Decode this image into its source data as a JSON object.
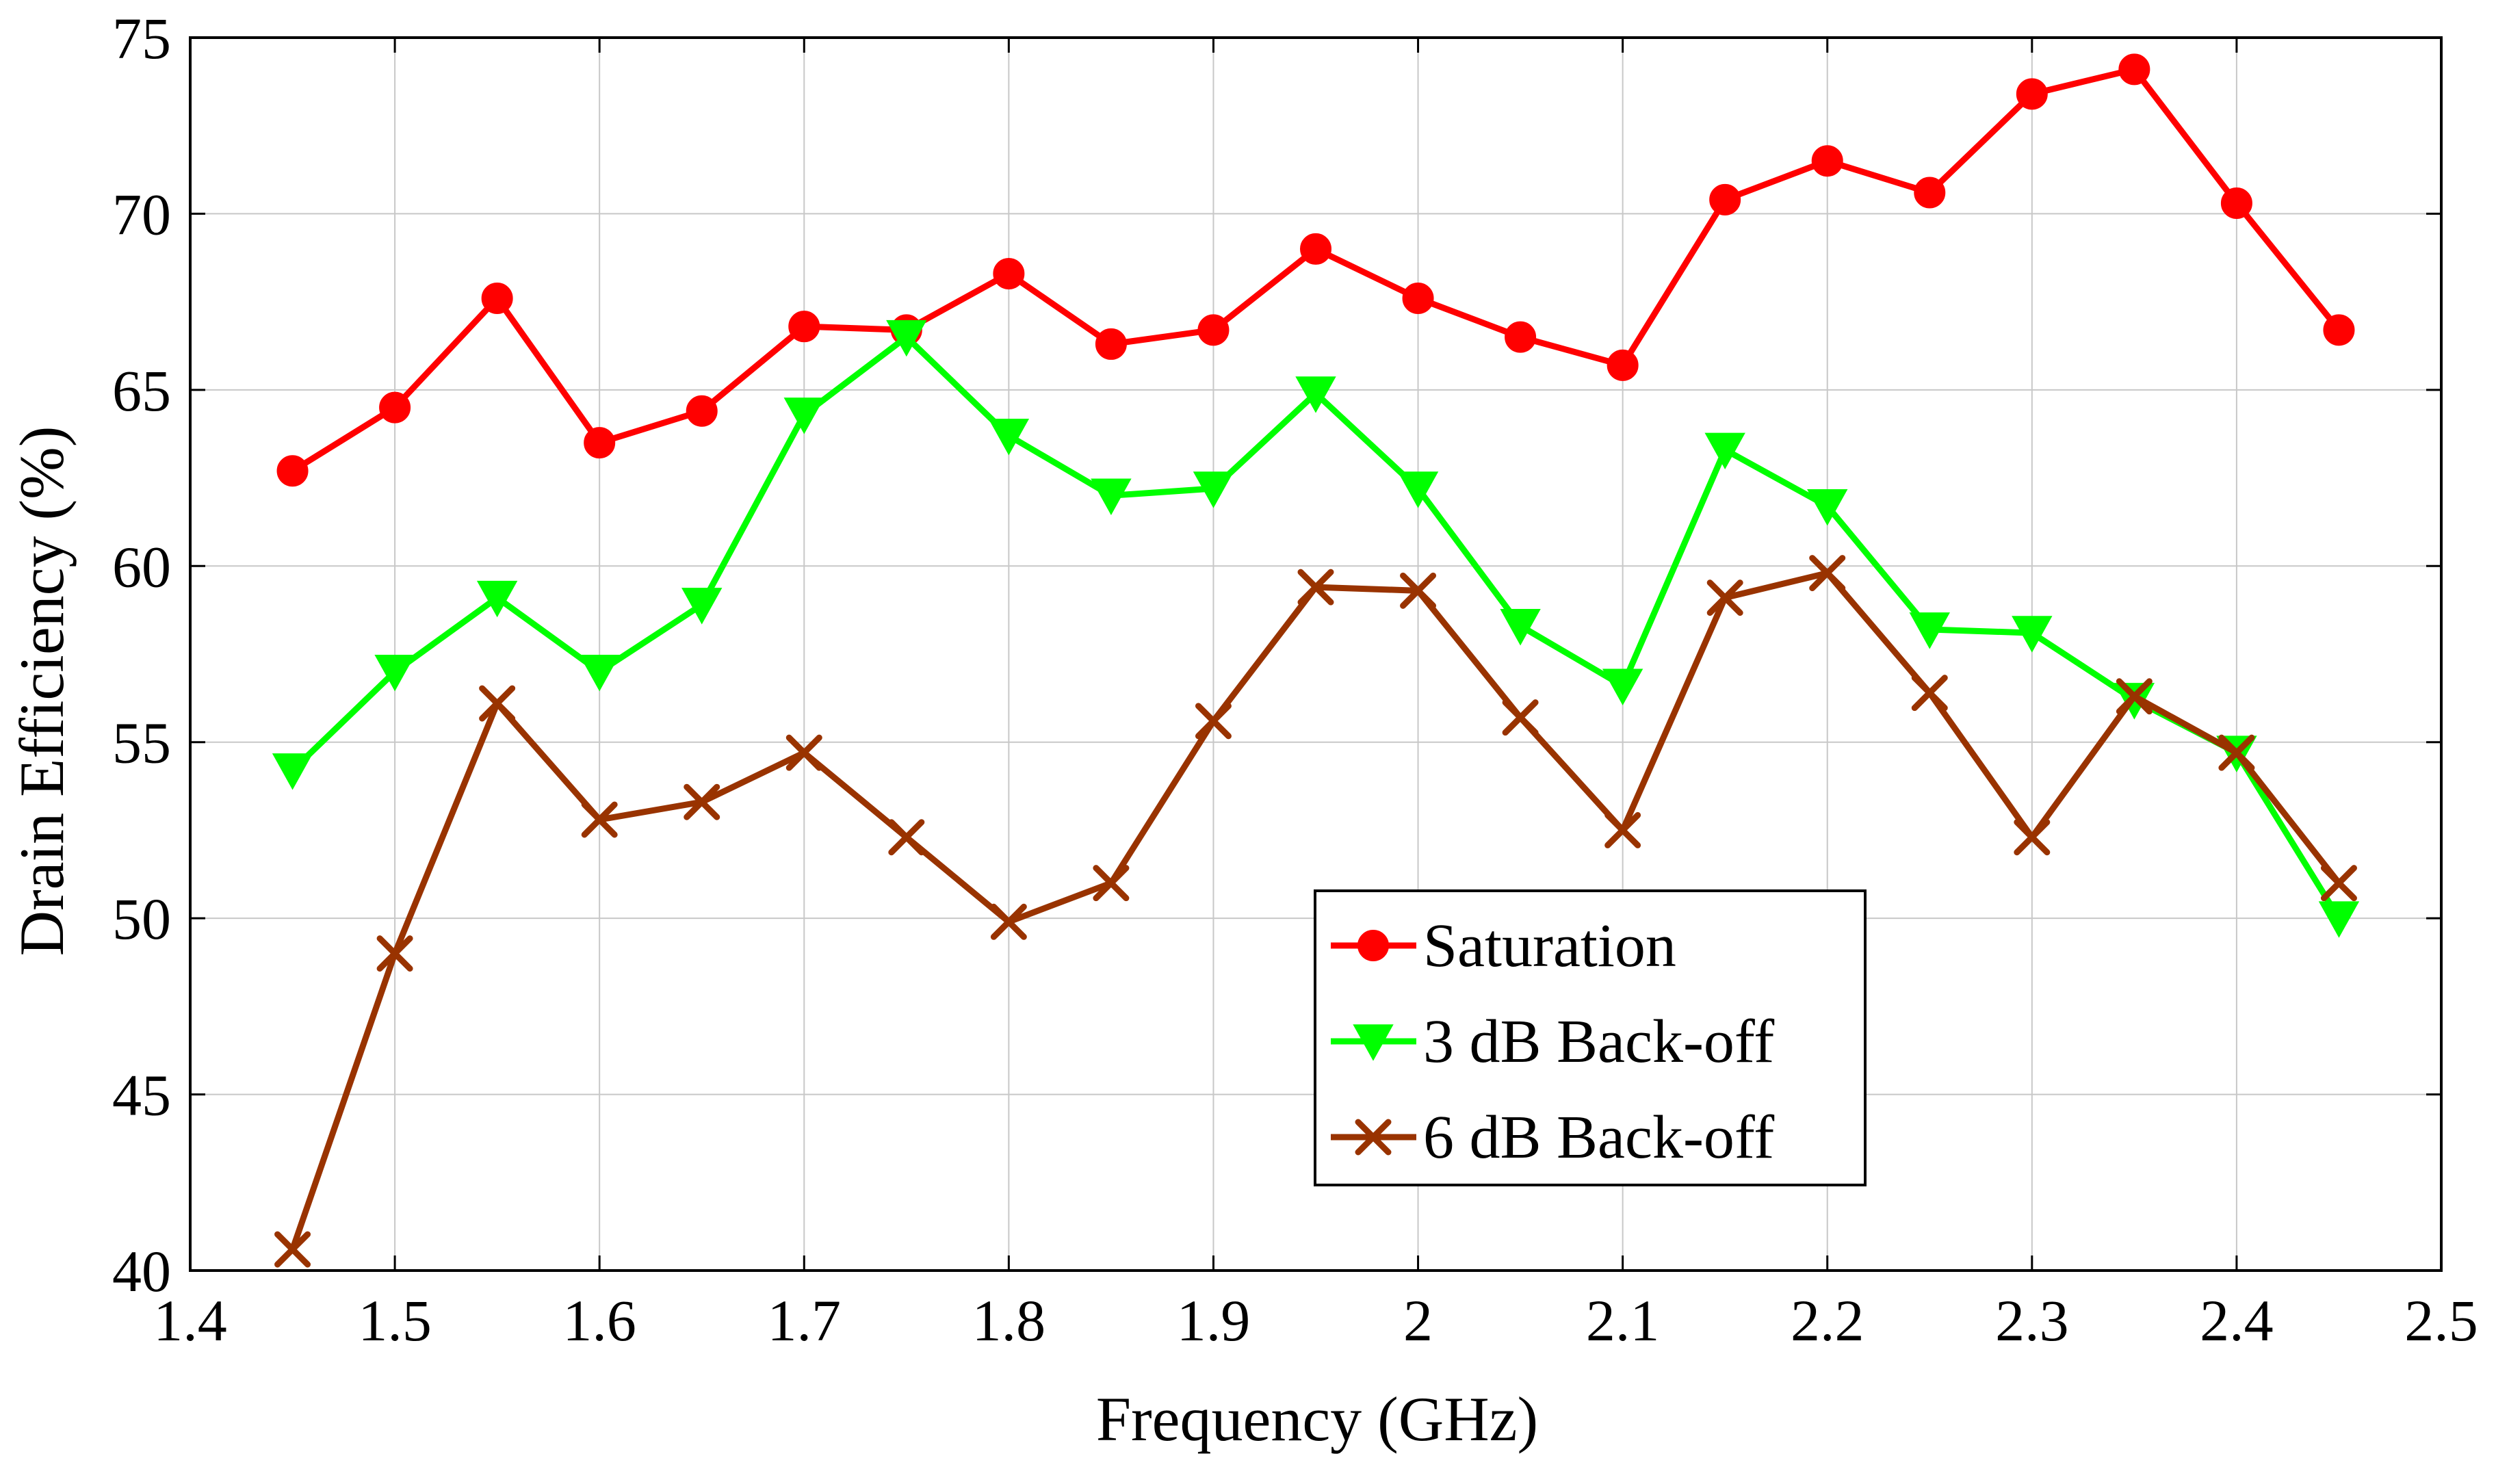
{
  "chart_data": {
    "type": "line",
    "title": "",
    "xlabel": "Frequency (GHz)",
    "ylabel": "Drain Efficiency (%)",
    "xlim": [
      1.4,
      2.5
    ],
    "ylim": [
      40,
      75
    ],
    "xticks": [
      1.4,
      1.5,
      1.6,
      1.7,
      1.8,
      1.9,
      2.0,
      2.1,
      2.2,
      2.3,
      2.4,
      2.5
    ],
    "xtick_labels": [
      "1.4",
      "1.5",
      "1.6",
      "1.7",
      "1.8",
      "1.9",
      "2",
      "2.1",
      "2.2",
      "2.3",
      "2.4",
      "2.5"
    ],
    "yticks": [
      40,
      45,
      50,
      55,
      60,
      65,
      70,
      75
    ],
    "ytick_labels": [
      "40",
      "45",
      "50",
      "55",
      "60",
      "65",
      "70",
      "75"
    ],
    "grid": true,
    "legend_position": "lower-center",
    "x": [
      1.45,
      1.5,
      1.55,
      1.6,
      1.65,
      1.7,
      1.75,
      1.8,
      1.85,
      1.9,
      1.95,
      2.0,
      2.05,
      2.1,
      2.15,
      2.2,
      2.25,
      2.3,
      2.35,
      2.4,
      2.45
    ],
    "series": [
      {
        "name": "Saturation",
        "color": "#ff0000",
        "marker": "circle",
        "values": [
          62.7,
          64.5,
          67.6,
          63.5,
          64.4,
          66.8,
          66.7,
          68.3,
          66.3,
          66.7,
          69.0,
          67.6,
          66.5,
          65.7,
          70.4,
          71.5,
          70.6,
          73.4,
          74.1,
          70.3,
          66.7
        ]
      },
      {
        "name": "3 dB Back-off",
        "color": "#00ff00",
        "marker": "triangle-down",
        "values": [
          54.2,
          57.0,
          59.1,
          57.0,
          58.9,
          64.3,
          66.5,
          63.7,
          62.0,
          62.2,
          64.9,
          62.2,
          58.3,
          56.6,
          63.3,
          61.7,
          58.2,
          58.1,
          56.2,
          54.7,
          50.0
        ]
      },
      {
        "name": "6 dB Back-off",
        "color": "#993300",
        "marker": "x",
        "values": [
          40.6,
          49.0,
          56.1,
          52.8,
          53.3,
          54.7,
          52.3,
          49.9,
          51.0,
          55.6,
          59.4,
          59.3,
          55.7,
          52.5,
          59.1,
          59.8,
          56.4,
          52.3,
          56.3,
          54.7,
          51.0
        ]
      }
    ]
  }
}
